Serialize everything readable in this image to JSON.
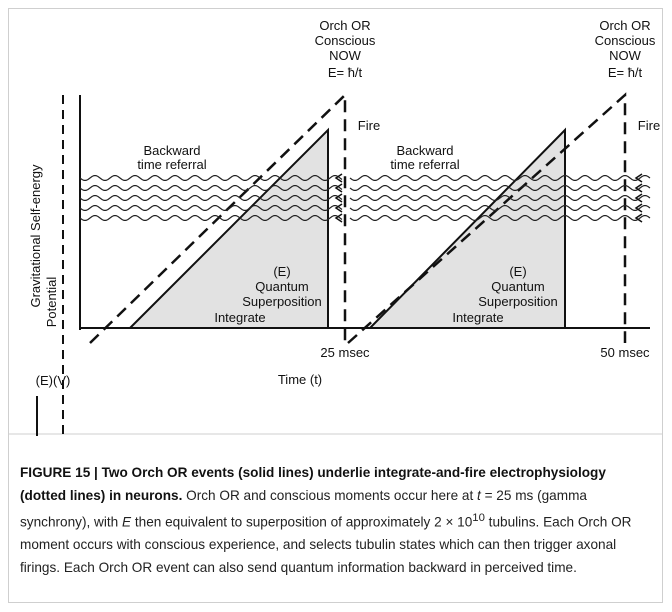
{
  "diagram": {
    "y_axis_label": "Gravitational Self-energy",
    "potential_label": "Potential",
    "ev_label": "(E)(V)",
    "x_axis_label": "Time (t)",
    "events": [
      {
        "header": [
          "Orch OR",
          "Conscious",
          "NOW"
        ],
        "formula": "E= ħ/t",
        "fire": "Fire",
        "backward": [
          "Backward",
          "time referral"
        ],
        "superposition": [
          "(E)",
          "Quantum",
          "Superposition"
        ],
        "integrate": "Integrate",
        "time": "25 msec"
      },
      {
        "header": [
          "Orch OR",
          "Conscious",
          "NOW"
        ],
        "formula": "E= ħ/t",
        "fire": "Fire",
        "backward": [
          "Backward",
          "time referral"
        ],
        "superposition": [
          "(E)",
          "Quantum",
          "Superposition"
        ],
        "integrate": "Integrate",
        "time": "50 msec"
      }
    ]
  },
  "caption": {
    "title": "FIGURE 15 | Two Orch OR events (solid lines) underlie integrate-and-fire electrophysiology (dotted lines) in neurons.",
    "body": [
      " Orch OR and conscious moments occur here at ",
      "t",
      " = 25 ms (gamma synchrony), with ",
      "E",
      " then equivalent to superposition of approximately 2 × 10",
      "10",
      " tubulins. Each Orch OR moment occurs with conscious experience, and selects tubulin states which can then trigger axonal firings. Each Orch OR event can also send quantum information backward in perceived time."
    ]
  }
}
